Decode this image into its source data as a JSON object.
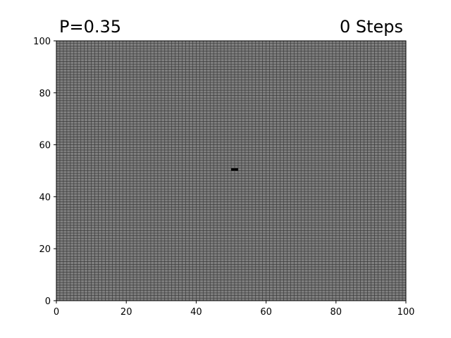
{
  "header": {
    "left_title": "P=0.35",
    "right_title": "0 Steps"
  },
  "chart_data": {
    "type": "heatmap",
    "title_left": "P=0.35",
    "title_right": "0 Steps",
    "xlabel": "",
    "ylabel": "",
    "xlim": [
      0,
      100
    ],
    "ylim": [
      0,
      100
    ],
    "grid": true,
    "grid_cells": [
      100,
      100
    ],
    "x_ticks": [
      0,
      20,
      40,
      60,
      80,
      100
    ],
    "y_ticks": [
      0,
      20,
      40,
      60,
      80,
      100
    ],
    "colors": {
      "cell_fill": "#808080",
      "grid_line": "#3a3a3a",
      "active_cell": "#000000",
      "frame": "#000000"
    },
    "active_cells": [
      {
        "x": 50,
        "y": 50
      },
      {
        "x": 51,
        "y": 50
      }
    ]
  }
}
